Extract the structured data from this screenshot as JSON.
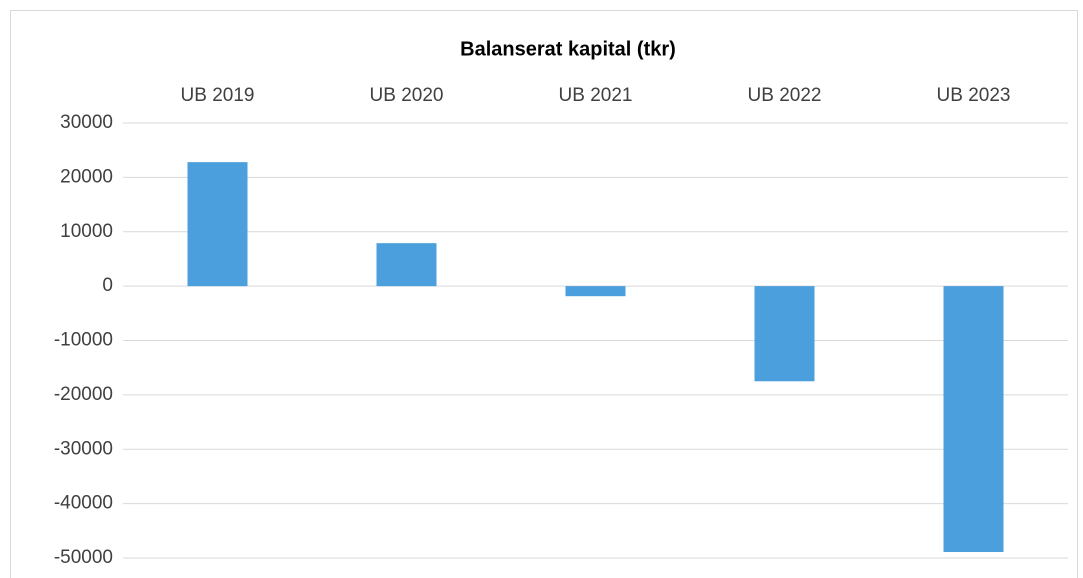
{
  "chart_data": {
    "type": "bar",
    "title": "Balanserat kapital (tkr)",
    "categories": [
      "UB 2019",
      "UB 2020",
      "UB 2021",
      "UB 2022",
      "UB 2023"
    ],
    "values": [
      22800,
      7900,
      -1850,
      -17500,
      -48900
    ],
    "color": "#4a9fdc",
    "ylim": [
      -50000,
      30000
    ],
    "yticks": [
      -50000,
      -40000,
      -30000,
      -20000,
      -10000,
      0,
      10000,
      20000,
      30000
    ],
    "grid": true
  }
}
